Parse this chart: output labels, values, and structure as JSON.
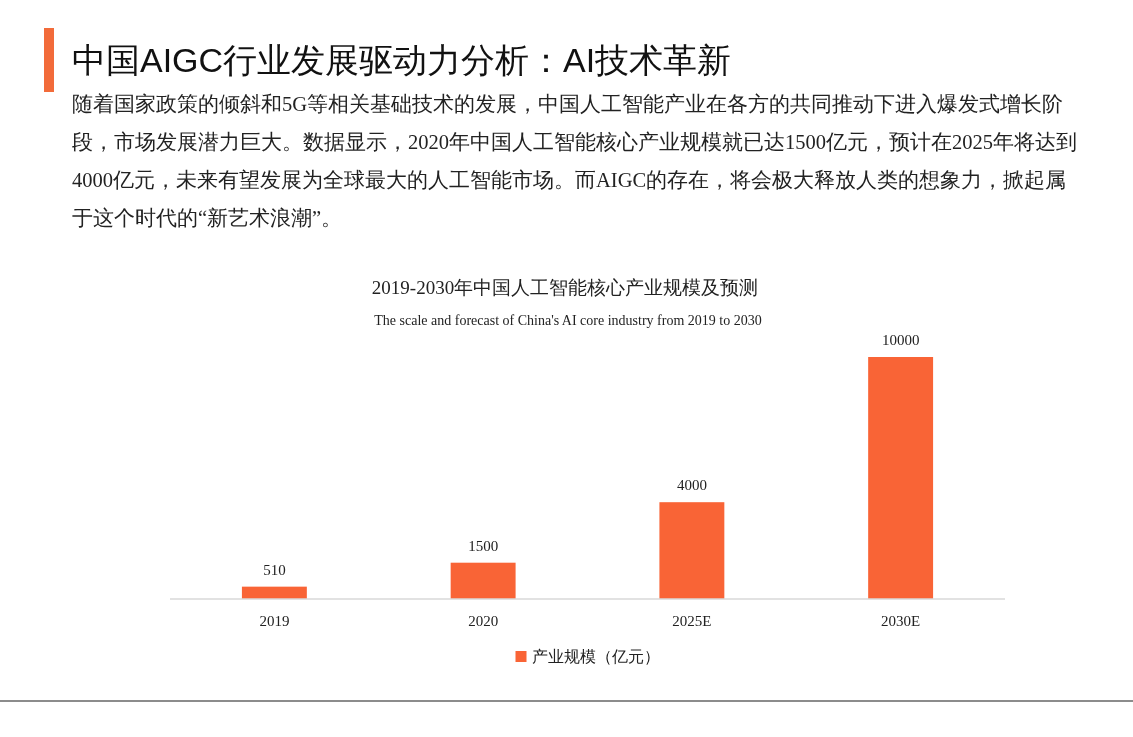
{
  "chart_data": {
    "type": "bar",
    "title": "2019-2030年中国人工智能核心产业规模及预测",
    "subtitle": "The scale and forecast of China's AI core industry from 2019 to 2030",
    "annotations": [
      "中国AIGC行业发展驱动力分析：AI技术革新",
      "随着国家政策的倾斜和5G等相关基础技术的发展，中国人工智能产业在各方的共同推动下进入爆发式增长阶段，市场发展潜力巨大。数据显示，2020年中国人工智能核心产业规模就已达1500亿元，预计在2025年将达到4000亿元，未来有望发展为全球最大的人工智能市场。而AIGC的存在，将会极大释放人类的想象力，掀起属于这个时代的“新艺术浪潮”。"
    ],
    "categories": [
      "2019",
      "2020",
      "2025E",
      "2030E"
    ],
    "series": [
      {
        "name": "产业规模（亿元）",
        "color": "#f96436",
        "values": [
          510,
          1500,
          4000,
          10000
        ]
      }
    ],
    "tick_labels": "x",
    "data_labels": true,
    "legend": "bottom"
  }
}
